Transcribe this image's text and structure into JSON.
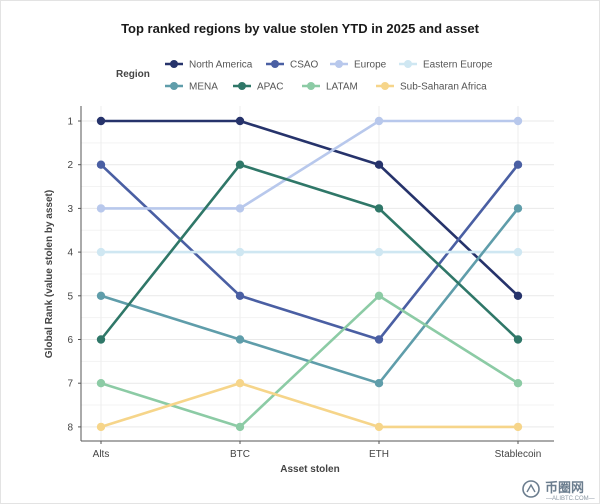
{
  "chart_data": {
    "type": "line",
    "title": "Top ranked regions by value stolen YTD in 2025 and asset",
    "xlabel": "Asset stolen",
    "ylabel": "Global Rank (value stolen by asset)",
    "legend_title": "Region",
    "legend_position": "top",
    "categories": [
      "Alts",
      "BTC",
      "ETH",
      "Stablecoin"
    ],
    "y_ticks": [
      "1",
      "2",
      "3",
      "4",
      "5",
      "6",
      "7",
      "8"
    ],
    "ylim": [
      1,
      8
    ],
    "y_inverted": true,
    "grid": true,
    "series": [
      {
        "name": "North America",
        "color": "#26336b",
        "values": [
          1,
          1,
          2,
          5
        ]
      },
      {
        "name": "CSAO",
        "color": "#4a5fa3",
        "values": [
          2,
          5,
          6,
          2
        ]
      },
      {
        "name": "Europe",
        "color": "#b8c8ec",
        "values": [
          3,
          3,
          1,
          1
        ]
      },
      {
        "name": "Eastern Europe",
        "color": "#cfe7f2",
        "values": [
          4,
          4,
          4,
          4
        ]
      },
      {
        "name": "MENA",
        "color": "#5f9daa",
        "values": [
          5,
          6,
          7,
          3
        ]
      },
      {
        "name": "APAC",
        "color": "#2f7768",
        "values": [
          6,
          2,
          3,
          6
        ]
      },
      {
        "name": "LATAM",
        "color": "#8ccba5",
        "values": [
          7,
          8,
          5,
          7
        ]
      },
      {
        "name": "Sub-Saharan Africa",
        "color": "#f6d58a",
        "values": [
          8,
          7,
          8,
          8
        ]
      }
    ]
  },
  "watermark": {
    "text": "币圈网",
    "sub": "—ALIBTC.COM—"
  }
}
